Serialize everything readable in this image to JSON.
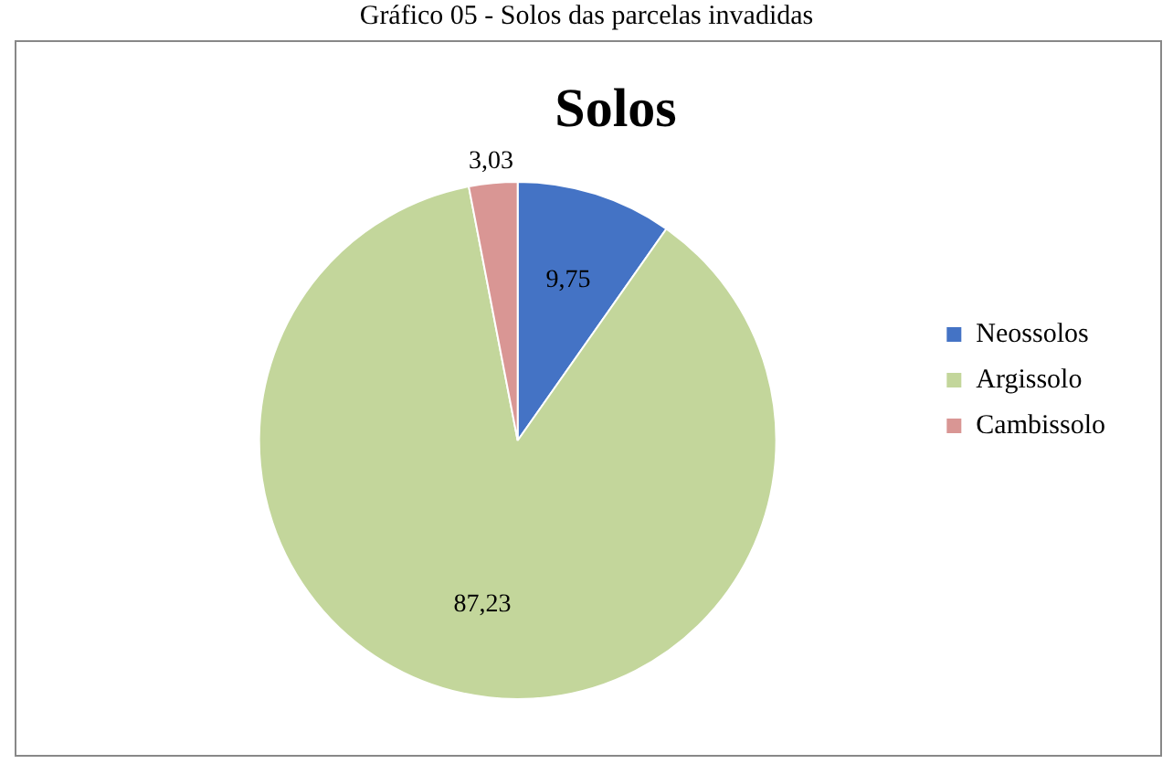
{
  "chart_data": {
    "type": "pie",
    "title": "Solos",
    "subtitle": "Gráfico 05 - Solos das parcelas invadidas",
    "categories": [
      "Neossolos",
      "Argissolo",
      "Cambissolo"
    ],
    "values": [
      9.75,
      87.23,
      3.03
    ],
    "colors": [
      "#4473c5",
      "#c3d69b",
      "#d99694"
    ],
    "value_labels": [
      "9,75",
      "87,23",
      "3,03"
    ],
    "legend": "right"
  }
}
